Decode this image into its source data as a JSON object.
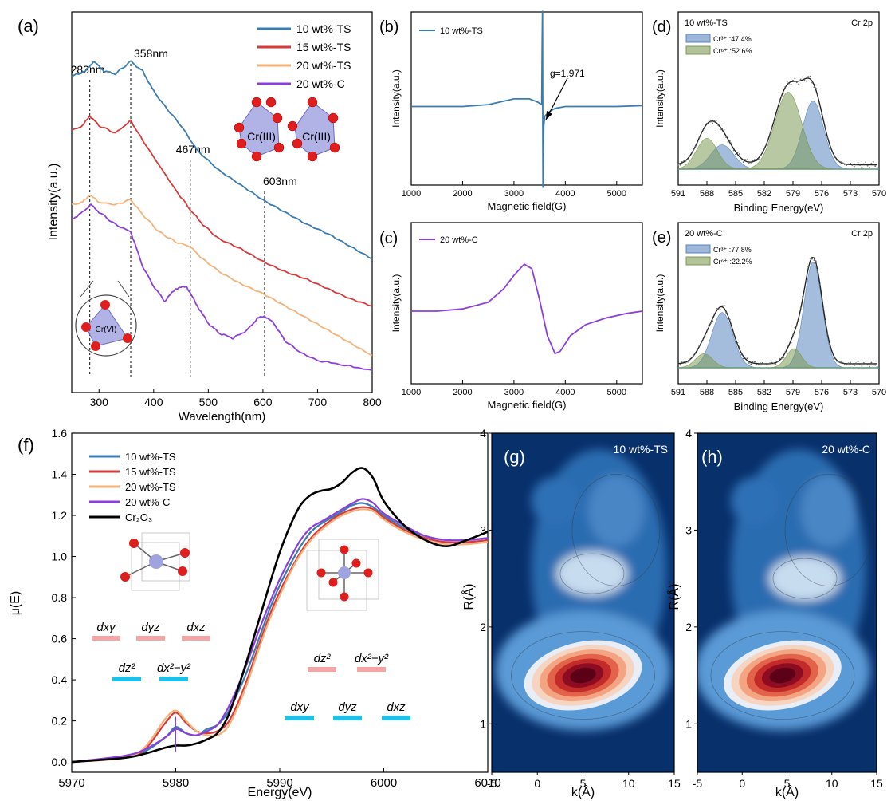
{
  "chart_data": [
    {
      "panel": "(a)",
      "type": "line",
      "xlabel": "Wavelength(nm)",
      "ylabel": "Intensity(a.u.)",
      "xlim": [
        250,
        800
      ],
      "xticks": [
        300,
        400,
        500,
        600,
        700,
        800
      ],
      "series": [
        {
          "name": "10 wt%-TS",
          "color": "#3a7bb0",
          "x": [
            250,
            275,
            290,
            310,
            330,
            358,
            380,
            400,
            420,
            450,
            480,
            520,
            560,
            600,
            640,
            680,
            720,
            760,
            800
          ],
          "y": [
            7.9,
            8.0,
            8.2,
            8.0,
            7.95,
            8.2,
            8.0,
            7.6,
            7.3,
            6.9,
            6.4,
            6.0,
            5.7,
            5.4,
            5.15,
            4.9,
            4.7,
            4.45,
            4.2
          ]
        },
        {
          "name": "15 wt%-TS",
          "color": "#d63a3a",
          "x": [
            250,
            270,
            283,
            300,
            330,
            358,
            380,
            410,
            440,
            467,
            490,
            520,
            560,
            600,
            640,
            680,
            720,
            760,
            800
          ],
          "y": [
            6.8,
            6.9,
            7.1,
            6.9,
            6.75,
            7.0,
            6.6,
            6.1,
            5.6,
            5.2,
            4.9,
            4.6,
            4.4,
            4.15,
            3.95,
            3.8,
            3.6,
            3.4,
            3.25
          ]
        },
        {
          "name": "20 wt%-TS",
          "color": "#f3b27a",
          "x": [
            250,
            270,
            283,
            300,
            330,
            358,
            380,
            410,
            440,
            467,
            490,
            520,
            560,
            600,
            640,
            680,
            720,
            760,
            800
          ],
          "y": [
            5.3,
            5.35,
            5.5,
            5.35,
            5.3,
            5.4,
            5.1,
            4.75,
            4.55,
            4.45,
            4.2,
            3.95,
            3.7,
            3.5,
            3.25,
            3.0,
            2.75,
            2.5,
            2.25
          ]
        },
        {
          "name": "20 wt%-C",
          "color": "#8b3fd9",
          "x": [
            250,
            270,
            285,
            300,
            330,
            358,
            380,
            400,
            420,
            440,
            460,
            480,
            500,
            520,
            545,
            570,
            590,
            603,
            620,
            640,
            670,
            700,
            750,
            800
          ],
          "y": [
            5.0,
            5.15,
            5.3,
            5.15,
            4.9,
            4.75,
            4.05,
            3.65,
            3.35,
            3.6,
            3.65,
            3.25,
            2.9,
            2.7,
            2.6,
            2.75,
            3.0,
            3.05,
            2.9,
            2.55,
            2.3,
            2.15,
            2.05,
            1.95
          ]
        }
      ],
      "annotations": [
        "283nm",
        "358nm",
        "467nm",
        "603nm"
      ],
      "inset_labels": [
        "Cr(III)",
        "Cr(III)",
        "Cr(VI)"
      ]
    },
    {
      "panel": "(b)",
      "type": "line",
      "xlabel": "Magnetic field(G)",
      "ylabel": "Intensity(a.u.)",
      "xlim": [
        1000,
        5500
      ],
      "xticks": [
        1000,
        2000,
        3000,
        4000,
        5000
      ],
      "series": [
        {
          "name": "10 wt%-TS",
          "color": "#3a7bb0",
          "x": [
            1000,
            1500,
            2000,
            2500,
            3000,
            3300,
            3450,
            3540,
            3550,
            3555,
            3560,
            3565,
            3570,
            3580,
            3600,
            3700,
            3800,
            4000,
            4500,
            5000,
            5500
          ],
          "y": [
            0,
            0,
            0,
            0.02,
            0.08,
            0.08,
            0.05,
            0.02,
            0.7,
            1.0,
            -0.1,
            -0.85,
            -0.55,
            -0.2,
            -0.1,
            -0.05,
            -0.02,
            0.0,
            0.0,
            0.0,
            0.01
          ]
        }
      ],
      "annotation": "g=1.971"
    },
    {
      "panel": "(c)",
      "type": "line",
      "xlabel": "Magnetic field(G)",
      "ylabel": "Intensity(a.u.)",
      "xlim": [
        1000,
        5500
      ],
      "xticks": [
        1000,
        2000,
        3000,
        4000,
        5000
      ],
      "series": [
        {
          "name": "20 wt%-C",
          "color": "#8b3fd9",
          "x": [
            1000,
            1500,
            2000,
            2500,
            2800,
            3000,
            3200,
            3350,
            3500,
            3650,
            3800,
            3900,
            4100,
            4400,
            4800,
            5200,
            5500
          ],
          "y": [
            0,
            0,
            0.02,
            0.08,
            0.2,
            0.32,
            0.42,
            0.38,
            0.1,
            -0.22,
            -0.38,
            -0.36,
            -0.22,
            -0.12,
            -0.06,
            -0.02,
            0.0
          ]
        }
      ]
    },
    {
      "panel": "(d)",
      "type": "area",
      "title": "10 wt%-TS",
      "subtitle": "Cr 2p",
      "xlabel": "Binding Energy(eV)",
      "ylabel": "Intensity(a.u.)",
      "xlim": [
        591,
        570
      ],
      "xticks": [
        591,
        588,
        585,
        582,
        579,
        576,
        573,
        570
      ],
      "legend": [
        {
          "name": "Cr³⁺ :47.4%",
          "color": "#5b86c0"
        },
        {
          "name": "Cr⁶⁺ :52.6%",
          "color": "#7e9a55"
        }
      ],
      "peaks": [
        {
          "center": 586.4,
          "height": 0.22,
          "width": 1.2,
          "color": "#5b86c0"
        },
        {
          "center": 576.9,
          "height": 0.62,
          "width": 1.1,
          "color": "#5b86c0"
        },
        {
          "center": 588.0,
          "height": 0.28,
          "width": 1.1,
          "color": "#7e9a55"
        },
        {
          "center": 579.5,
          "height": 0.7,
          "width": 1.4,
          "color": "#7e9a55"
        }
      ]
    },
    {
      "panel": "(e)",
      "type": "area",
      "title": "20 wt%-C",
      "subtitle": "Cr 2p",
      "xlabel": "Binding Energy(eV)",
      "ylabel": "Intensity(a.u.)",
      "xlim": [
        591,
        570
      ],
      "xticks": [
        591,
        588,
        585,
        582,
        579,
        576,
        573,
        570
      ],
      "legend": [
        {
          "name": "Cr³⁺ :77.8%",
          "color": "#5b86c0"
        },
        {
          "name": "Cr⁶⁺ :22.2%",
          "color": "#7e9a55"
        }
      ],
      "peaks": [
        {
          "center": 586.4,
          "height": 0.55,
          "width": 1.1,
          "color": "#5b86c0"
        },
        {
          "center": 576.9,
          "height": 1.05,
          "width": 0.95,
          "color": "#5b86c0"
        },
        {
          "center": 588.3,
          "height": 0.14,
          "width": 0.9,
          "color": "#7e9a55"
        },
        {
          "center": 578.9,
          "height": 0.19,
          "width": 0.8,
          "color": "#7e9a55"
        }
      ]
    },
    {
      "panel": "(f)",
      "type": "line",
      "xlabel": "Energy(eV)",
      "ylabel": "μ(E)",
      "xlim": [
        5970,
        6010
      ],
      "ylim": [
        -0.05,
        1.6
      ],
      "xticks": [
        5970,
        5980,
        5990,
        6000,
        6010
      ],
      "yticks": [
        0.0,
        0.2,
        0.4,
        0.6,
        0.8,
        1.0,
        1.2,
        1.4,
        1.6
      ],
      "series": [
        {
          "name": "10 wt%-TS",
          "color": "#3a7bb0",
          "x": [
            5970,
            5975,
            5977,
            5979,
            5980,
            5981,
            5982,
            5983,
            5984,
            5985,
            5986,
            5987,
            5988,
            5989,
            5990,
            5991,
            5992,
            5993,
            5994,
            5995,
            5996,
            5997,
            5998,
            5999,
            6000,
            6002,
            6004,
            6006,
            6008,
            6010
          ],
          "y": [
            0.0,
            0.02,
            0.05,
            0.12,
            0.17,
            0.14,
            0.13,
            0.16,
            0.18,
            0.24,
            0.34,
            0.46,
            0.6,
            0.74,
            0.86,
            0.96,
            1.05,
            1.12,
            1.16,
            1.19,
            1.22,
            1.25,
            1.26,
            1.24,
            1.2,
            1.14,
            1.1,
            1.08,
            1.08,
            1.09
          ]
        },
        {
          "name": "15 wt%-TS",
          "color": "#d63a3a",
          "x": [
            5970,
            5975,
            5977,
            5979,
            5980,
            5981,
            5982,
            5983,
            5984,
            5985,
            5986,
            5987,
            5988,
            5989,
            5990,
            5991,
            5992,
            5993,
            5994,
            5995,
            5996,
            5997,
            5998,
            5999,
            6000,
            6002,
            6004,
            6006,
            6008,
            6010
          ],
          "y": [
            0.0,
            0.02,
            0.06,
            0.19,
            0.24,
            0.19,
            0.15,
            0.14,
            0.15,
            0.19,
            0.29,
            0.42,
            0.57,
            0.71,
            0.83,
            0.93,
            1.02,
            1.09,
            1.14,
            1.18,
            1.21,
            1.23,
            1.24,
            1.23,
            1.19,
            1.13,
            1.09,
            1.07,
            1.07,
            1.08
          ]
        },
        {
          "name": "20 wt%-TS",
          "color": "#f3b27a",
          "x": [
            5970,
            5975,
            5977,
            5979,
            5980,
            5981,
            5982,
            5983,
            5984,
            5985,
            5986,
            5987,
            5988,
            5989,
            5990,
            5991,
            5992,
            5993,
            5994,
            5995,
            5996,
            5997,
            5998,
            5999,
            6000,
            6002,
            6004,
            6006,
            6008,
            6010
          ],
          "y": [
            0.0,
            0.02,
            0.07,
            0.21,
            0.25,
            0.2,
            0.15,
            0.13,
            0.13,
            0.17,
            0.27,
            0.4,
            0.55,
            0.69,
            0.81,
            0.92,
            1.01,
            1.08,
            1.13,
            1.17,
            1.2,
            1.22,
            1.23,
            1.22,
            1.18,
            1.12,
            1.08,
            1.06,
            1.06,
            1.07
          ]
        },
        {
          "name": "20 wt%-C",
          "color": "#8b3fd9",
          "x": [
            5970,
            5975,
            5977,
            5979,
            5980,
            5981,
            5982,
            5983,
            5984,
            5985,
            5986,
            5987,
            5988,
            5989,
            5990,
            5991,
            5992,
            5993,
            5994,
            5995,
            5996,
            5997,
            5998,
            5999,
            6000,
            6002,
            6004,
            6006,
            6008,
            6010
          ],
          "y": [
            0.0,
            0.03,
            0.06,
            0.12,
            0.16,
            0.14,
            0.13,
            0.15,
            0.18,
            0.26,
            0.37,
            0.5,
            0.64,
            0.77,
            0.89,
            0.99,
            1.08,
            1.14,
            1.17,
            1.2,
            1.23,
            1.26,
            1.28,
            1.26,
            1.21,
            1.15,
            1.1,
            1.08,
            1.08,
            1.09
          ]
        },
        {
          "name": "Cr₂O₃",
          "color": "#000000",
          "x": [
            5970,
            5975,
            5977,
            5979,
            5980,
            5981,
            5982,
            5983,
            5984,
            5985,
            5986,
            5987,
            5988,
            5989,
            5990,
            5991,
            5992,
            5993,
            5994,
            5995,
            5996,
            5997,
            5998,
            5999,
            6000,
            6002,
            6004,
            6006,
            6008,
            6010
          ],
          "y": [
            0.0,
            0.02,
            0.04,
            0.07,
            0.08,
            0.08,
            0.09,
            0.11,
            0.14,
            0.22,
            0.36,
            0.52,
            0.69,
            0.86,
            1.02,
            1.15,
            1.25,
            1.3,
            1.32,
            1.33,
            1.36,
            1.41,
            1.43,
            1.38,
            1.27,
            1.15,
            1.08,
            1.05,
            1.08,
            1.12
          ]
        }
      ],
      "orbital_labels": {
        "tetra_upper": [
          "dxy",
          "dyz",
          "dxz"
        ],
        "tetra_lower": [
          "dz²",
          "dx²−y²"
        ],
        "octa_upper": [
          "dz²",
          "dx²−y²"
        ],
        "octa_lower": [
          "dxy",
          "dyz",
          "dxz"
        ]
      }
    },
    {
      "panel": "(g)",
      "type": "heatmap",
      "title": "10 wt%-TS",
      "xlabel": "k(Å)",
      "ylabel": "R(Å)",
      "xlim": [
        -5,
        15
      ],
      "ylim": [
        0.5,
        4
      ],
      "xticks": [
        -5,
        0,
        5,
        10,
        15
      ],
      "yticks": [
        1,
        2,
        3,
        4
      ],
      "peaks": [
        {
          "k": 5,
          "R": 1.5,
          "amplitude": 1.0
        },
        {
          "k": 6,
          "R": 2.55,
          "amplitude": 0.35
        }
      ]
    },
    {
      "panel": "(h)",
      "type": "heatmap",
      "title": "20 wt%-C",
      "xlabel": "k(Å)",
      "ylabel": "R(Å)",
      "xlim": [
        -5,
        15
      ],
      "ylim": [
        0.5,
        4
      ],
      "xticks": [
        -5,
        0,
        5,
        10,
        15
      ],
      "yticks": [
        1,
        2,
        3,
        4
      ],
      "peaks": [
        {
          "k": 4.5,
          "R": 1.5,
          "amplitude": 1.1
        },
        {
          "k": 7,
          "R": 2.5,
          "amplitude": 0.35
        }
      ]
    }
  ]
}
